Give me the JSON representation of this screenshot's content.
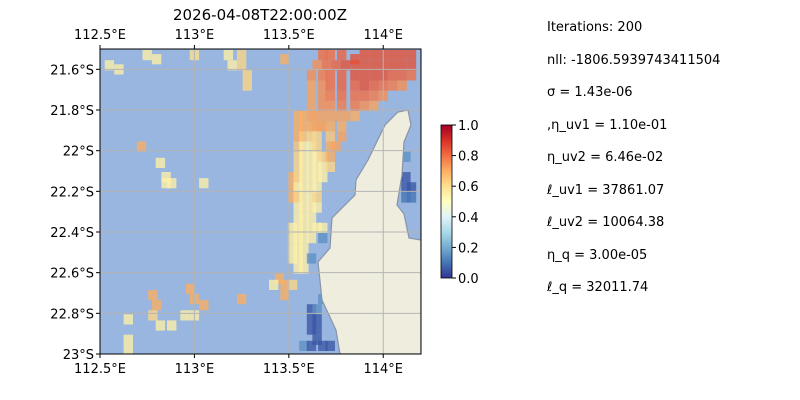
{
  "chart_data": {
    "type": "heatmap",
    "title": "2026-04-08T22:00:00Z",
    "xlim": [
      112.5,
      114.2
    ],
    "ylim": [
      -23.0,
      -21.5
    ],
    "x_ticks": [
      {
        "value": 112.5,
        "label": "112.5°E"
      },
      {
        "value": 113.0,
        "label": "113°E"
      },
      {
        "value": 113.5,
        "label": "113.5°E"
      },
      {
        "value": 114.0,
        "label": "114°E"
      }
    ],
    "y_ticks": [
      {
        "value": -21.6,
        "label": "21.6°S"
      },
      {
        "value": -21.8,
        "label": "21.8°S"
      },
      {
        "value": -22.0,
        "label": "22°S"
      },
      {
        "value": -22.2,
        "label": "22.2°S"
      },
      {
        "value": -22.4,
        "label": "22.4°S"
      },
      {
        "value": -22.6,
        "label": "22.6°S"
      },
      {
        "value": -22.8,
        "label": "22.8°S"
      },
      {
        "value": -23.0,
        "label": "23°S"
      }
    ],
    "grid": true,
    "colormap": "RdYlBu_r",
    "colorbar": {
      "range": [
        0.0,
        1.0
      ],
      "ticks": [
        "0.0",
        "0.2",
        "0.4",
        "0.6",
        "0.8",
        "1.0"
      ]
    },
    "cells": [
      {
        "lon": 112.55,
        "lat": -21.58,
        "v": 0.55
      },
      {
        "lon": 112.6,
        "lat": -21.6,
        "v": 0.55
      },
      {
        "lon": 112.75,
        "lat": -21.53,
        "v": 0.55
      },
      {
        "lon": 112.8,
        "lat": -21.55,
        "v": 0.55
      },
      {
        "lon": 113.0,
        "lat": -21.53,
        "v": 0.6
      },
      {
        "lon": 113.18,
        "lat": -21.53,
        "v": 0.55
      },
      {
        "lon": 113.25,
        "lat": -21.53,
        "v": 0.62
      },
      {
        "lon": 113.25,
        "lat": -21.58,
        "v": 0.62
      },
      {
        "lon": 113.28,
        "lat": -21.63,
        "v": 0.62
      },
      {
        "lon": 113.28,
        "lat": -21.68,
        "v": 0.62
      },
      {
        "lon": 113.2,
        "lat": -21.58,
        "v": 0.55
      },
      {
        "lon": 113.48,
        "lat": -21.55,
        "v": 0.7
      },
      {
        "lon": 112.72,
        "lat": -21.98,
        "v": 0.7
      },
      {
        "lon": 112.82,
        "lat": -22.06,
        "v": 0.55
      },
      {
        "lon": 112.85,
        "lat": -22.13,
        "v": 0.55
      },
      {
        "lon": 112.88,
        "lat": -22.16,
        "v": 0.55
      },
      {
        "lon": 112.85,
        "lat": -22.16,
        "v": 0.55
      },
      {
        "lon": 113.05,
        "lat": -22.16,
        "v": 0.55
      },
      {
        "lon": 112.78,
        "lat": -22.71,
        "v": 0.7
      },
      {
        "lon": 112.8,
        "lat": -22.76,
        "v": 0.7
      },
      {
        "lon": 112.78,
        "lat": -22.81,
        "v": 0.62
      },
      {
        "lon": 112.98,
        "lat": -22.68,
        "v": 0.7
      },
      {
        "lon": 113.0,
        "lat": -22.73,
        "v": 0.7
      },
      {
        "lon": 113.05,
        "lat": -22.76,
        "v": 0.7
      },
      {
        "lon": 113.25,
        "lat": -22.73,
        "v": 0.7
      },
      {
        "lon": 112.95,
        "lat": -22.81,
        "v": 0.55
      },
      {
        "lon": 113.0,
        "lat": -22.81,
        "v": 0.55
      },
      {
        "lon": 112.65,
        "lat": -22.83,
        "v": 0.55
      },
      {
        "lon": 112.65,
        "lat": -22.93,
        "v": 0.55
      },
      {
        "lon": 112.65,
        "lat": -22.98,
        "v": 0.55
      },
      {
        "lon": 112.82,
        "lat": -22.86,
        "v": 0.55
      },
      {
        "lon": 112.88,
        "lat": -22.86,
        "v": 0.55
      },
      {
        "lon": 113.45,
        "lat": -22.63,
        "v": 0.7
      },
      {
        "lon": 113.48,
        "lat": -22.66,
        "v": 0.7
      },
      {
        "lon": 113.48,
        "lat": -22.71,
        "v": 0.7
      },
      {
        "lon": 113.52,
        "lat": -22.66,
        "v": 0.62
      },
      {
        "lon": 113.42,
        "lat": -22.66,
        "v": 0.55
      },
      {
        "lon": 113.55,
        "lat": -21.83,
        "v": 0.7
      },
      {
        "lon": 113.58,
        "lat": -21.83,
        "v": 0.7
      },
      {
        "lon": 113.62,
        "lat": -21.83,
        "v": 0.72
      },
      {
        "lon": 113.65,
        "lat": -21.83,
        "v": 0.72
      },
      {
        "lon": 113.55,
        "lat": -21.88,
        "v": 0.7
      },
      {
        "lon": 113.58,
        "lat": -21.88,
        "v": 0.7
      },
      {
        "lon": 113.62,
        "lat": -21.88,
        "v": 0.7
      },
      {
        "lon": 113.65,
        "lat": -21.88,
        "v": 0.72
      },
      {
        "lon": 113.68,
        "lat": -21.88,
        "v": 0.72
      },
      {
        "lon": 113.72,
        "lat": -21.88,
        "v": 0.7
      },
      {
        "lon": 113.55,
        "lat": -21.93,
        "v": 0.7
      },
      {
        "lon": 113.58,
        "lat": -21.93,
        "v": 0.65
      },
      {
        "lon": 113.62,
        "lat": -21.93,
        "v": 0.62
      },
      {
        "lon": 113.65,
        "lat": -21.93,
        "v": 0.62
      },
      {
        "lon": 113.72,
        "lat": -21.93,
        "v": 0.65
      },
      {
        "lon": 113.78,
        "lat": -21.93,
        "v": 0.72
      },
      {
        "lon": 113.55,
        "lat": -21.98,
        "v": 0.65
      },
      {
        "lon": 113.58,
        "lat": -21.98,
        "v": 0.55
      },
      {
        "lon": 113.62,
        "lat": -21.98,
        "v": 0.55
      },
      {
        "lon": 113.65,
        "lat": -21.98,
        "v": 0.62
      },
      {
        "lon": 113.72,
        "lat": -21.98,
        "v": 0.7
      },
      {
        "lon": 113.75,
        "lat": -21.98,
        "v": 0.72
      },
      {
        "lon": 113.55,
        "lat": -22.03,
        "v": 0.62
      },
      {
        "lon": 113.58,
        "lat": -22.03,
        "v": 0.55
      },
      {
        "lon": 113.62,
        "lat": -22.03,
        "v": 0.55
      },
      {
        "lon": 113.65,
        "lat": -22.03,
        "v": 0.55
      },
      {
        "lon": 113.68,
        "lat": -22.03,
        "v": 0.62
      },
      {
        "lon": 113.72,
        "lat": -22.03,
        "v": 0.7
      },
      {
        "lon": 113.55,
        "lat": -22.08,
        "v": 0.62
      },
      {
        "lon": 113.58,
        "lat": -22.08,
        "v": 0.55
      },
      {
        "lon": 113.62,
        "lat": -22.08,
        "v": 0.55
      },
      {
        "lon": 113.65,
        "lat": -22.08,
        "v": 0.55
      },
      {
        "lon": 113.68,
        "lat": -22.08,
        "v": 0.55
      },
      {
        "lon": 113.72,
        "lat": -22.08,
        "v": 0.62
      },
      {
        "lon": 113.52,
        "lat": -22.13,
        "v": 0.7
      },
      {
        "lon": 113.55,
        "lat": -22.13,
        "v": 0.62
      },
      {
        "lon": 113.58,
        "lat": -22.13,
        "v": 0.55
      },
      {
        "lon": 113.62,
        "lat": -22.13,
        "v": 0.55
      },
      {
        "lon": 113.65,
        "lat": -22.13,
        "v": 0.55
      },
      {
        "lon": 113.68,
        "lat": -22.13,
        "v": 0.55
      },
      {
        "lon": 113.52,
        "lat": -22.18,
        "v": 0.7
      },
      {
        "lon": 113.55,
        "lat": -22.18,
        "v": 0.55
      },
      {
        "lon": 113.58,
        "lat": -22.18,
        "v": 0.55
      },
      {
        "lon": 113.62,
        "lat": -22.18,
        "v": 0.55
      },
      {
        "lon": 113.65,
        "lat": -22.18,
        "v": 0.55
      },
      {
        "lon": 113.52,
        "lat": -22.23,
        "v": 0.7
      },
      {
        "lon": 113.55,
        "lat": -22.23,
        "v": 0.62
      },
      {
        "lon": 113.58,
        "lat": -22.23,
        "v": 0.55
      },
      {
        "lon": 113.62,
        "lat": -22.23,
        "v": 0.55
      },
      {
        "lon": 113.65,
        "lat": -22.23,
        "v": 0.62
      },
      {
        "lon": 113.55,
        "lat": -22.28,
        "v": 0.55
      },
      {
        "lon": 113.58,
        "lat": -22.28,
        "v": 0.55
      },
      {
        "lon": 113.62,
        "lat": -22.28,
        "v": 0.55
      },
      {
        "lon": 113.65,
        "lat": -22.28,
        "v": 0.55
      },
      {
        "lon": 113.55,
        "lat": -22.33,
        "v": 0.55
      },
      {
        "lon": 113.58,
        "lat": -22.33,
        "v": 0.55
      },
      {
        "lon": 113.62,
        "lat": -22.33,
        "v": 0.55
      },
      {
        "lon": 113.52,
        "lat": -22.38,
        "v": 0.55
      },
      {
        "lon": 113.55,
        "lat": -22.38,
        "v": 0.55
      },
      {
        "lon": 113.58,
        "lat": -22.38,
        "v": 0.55
      },
      {
        "lon": 113.62,
        "lat": -22.38,
        "v": 0.55
      },
      {
        "lon": 113.65,
        "lat": -22.38,
        "v": 0.55
      },
      {
        "lon": 113.68,
        "lat": -22.38,
        "v": 0.55
      },
      {
        "lon": 113.52,
        "lat": -22.43,
        "v": 0.55
      },
      {
        "lon": 113.55,
        "lat": -22.43,
        "v": 0.55
      },
      {
        "lon": 113.58,
        "lat": -22.43,
        "v": 0.55
      },
      {
        "lon": 113.62,
        "lat": -22.43,
        "v": 0.55
      },
      {
        "lon": 113.52,
        "lat": -22.48,
        "v": 0.55
      },
      {
        "lon": 113.55,
        "lat": -22.48,
        "v": 0.55
      },
      {
        "lon": 113.58,
        "lat": -22.48,
        "v": 0.55
      },
      {
        "lon": 113.52,
        "lat": -22.53,
        "v": 0.55
      },
      {
        "lon": 113.55,
        "lat": -22.53,
        "v": 0.55
      },
      {
        "lon": 113.58,
        "lat": -22.53,
        "v": 0.55
      },
      {
        "lon": 113.55,
        "lat": -22.58,
        "v": 0.55
      },
      {
        "lon": 113.58,
        "lat": -22.58,
        "v": 0.55
      },
      {
        "lon": 113.62,
        "lat": -22.53,
        "v": 0.15
      },
      {
        "lon": 113.68,
        "lat": -22.43,
        "v": 0.15
      },
      {
        "lon": 113.62,
        "lat": -22.78,
        "v": 0.05
      },
      {
        "lon": 113.65,
        "lat": -22.78,
        "v": 0.15
      },
      {
        "lon": 113.62,
        "lat": -22.83,
        "v": 0.05
      },
      {
        "lon": 113.65,
        "lat": -22.83,
        "v": 0.05
      },
      {
        "lon": 113.62,
        "lat": -22.88,
        "v": 0.05
      },
      {
        "lon": 113.65,
        "lat": -22.88,
        "v": 0.05
      },
      {
        "lon": 113.65,
        "lat": -22.93,
        "v": 0.05
      },
      {
        "lon": 113.58,
        "lat": -22.96,
        "v": 0.15
      },
      {
        "lon": 113.62,
        "lat": -22.96,
        "v": 0.05
      },
      {
        "lon": 113.68,
        "lat": -22.96,
        "v": 0.05
      },
      {
        "lon": 113.72,
        "lat": -22.96,
        "v": 0.05
      },
      {
        "lon": 113.68,
        "lat": -22.73,
        "v": 0.15
      },
      {
        "lon": 114.08,
        "lat": -22.13,
        "v": 0.05
      },
      {
        "lon": 114.12,
        "lat": -22.13,
        "v": 0.05
      },
      {
        "lon": 114.12,
        "lat": -22.18,
        "v": 0.05
      },
      {
        "lon": 114.15,
        "lat": -22.18,
        "v": 0.05
      },
      {
        "lon": 114.12,
        "lat": -22.23,
        "v": 0.1
      },
      {
        "lon": 114.15,
        "lat": -22.23,
        "v": 0.1
      },
      {
        "lon": 114.12,
        "lat": -22.03,
        "v": 0.15
      },
      {
        "lon": 113.85,
        "lat": -21.55,
        "v": 0.85
      },
      {
        "lon": 113.9,
        "lat": -21.53,
        "v": 0.85
      },
      {
        "lon": 113.68,
        "lat": -21.53,
        "v": 0.8
      },
      {
        "lon": 113.72,
        "lat": -21.53,
        "v": 0.8
      },
      {
        "lon": 113.78,
        "lat": -21.53,
        "v": 0.82
      },
      {
        "lon": 113.95,
        "lat": -21.53,
        "v": 0.85
      },
      {
        "lon": 114.0,
        "lat": -21.53,
        "v": 0.85
      },
      {
        "lon": 114.05,
        "lat": -21.53,
        "v": 0.85
      },
      {
        "lon": 114.1,
        "lat": -21.53,
        "v": 0.85
      },
      {
        "lon": 114.15,
        "lat": -21.53,
        "v": 0.85
      },
      {
        "lon": 113.65,
        "lat": -21.58,
        "v": 0.75
      },
      {
        "lon": 113.7,
        "lat": -21.58,
        "v": 0.8
      },
      {
        "lon": 113.75,
        "lat": -21.58,
        "v": 0.82
      },
      {
        "lon": 113.8,
        "lat": -21.58,
        "v": 0.85
      },
      {
        "lon": 113.85,
        "lat": -21.58,
        "v": 0.85
      },
      {
        "lon": 113.9,
        "lat": -21.58,
        "v": 0.85
      },
      {
        "lon": 113.95,
        "lat": -21.58,
        "v": 0.85
      },
      {
        "lon": 114.0,
        "lat": -21.58,
        "v": 0.85
      },
      {
        "lon": 114.05,
        "lat": -21.58,
        "v": 0.85
      },
      {
        "lon": 114.1,
        "lat": -21.58,
        "v": 0.85
      },
      {
        "lon": 114.15,
        "lat": -21.58,
        "v": 0.85
      },
      {
        "lon": 113.62,
        "lat": -21.63,
        "v": 0.75
      },
      {
        "lon": 113.68,
        "lat": -21.63,
        "v": 0.78
      },
      {
        "lon": 113.72,
        "lat": -21.63,
        "v": 0.8
      },
      {
        "lon": 113.78,
        "lat": -21.63,
        "v": 0.82
      },
      {
        "lon": 113.85,
        "lat": -21.63,
        "v": 0.85
      },
      {
        "lon": 113.9,
        "lat": -21.63,
        "v": 0.85
      },
      {
        "lon": 113.95,
        "lat": -21.63,
        "v": 0.85
      },
      {
        "lon": 114.0,
        "lat": -21.63,
        "v": 0.85
      },
      {
        "lon": 114.05,
        "lat": -21.63,
        "v": 0.82
      },
      {
        "lon": 114.1,
        "lat": -21.63,
        "v": 0.82
      },
      {
        "lon": 114.15,
        "lat": -21.63,
        "v": 0.8
      },
      {
        "lon": 113.62,
        "lat": -21.68,
        "v": 0.72
      },
      {
        "lon": 113.68,
        "lat": -21.68,
        "v": 0.75
      },
      {
        "lon": 113.72,
        "lat": -21.68,
        "v": 0.8
      },
      {
        "lon": 113.78,
        "lat": -21.68,
        "v": 0.82
      },
      {
        "lon": 113.85,
        "lat": -21.68,
        "v": 0.82
      },
      {
        "lon": 113.9,
        "lat": -21.68,
        "v": 0.85
      },
      {
        "lon": 113.95,
        "lat": -21.68,
        "v": 0.82
      },
      {
        "lon": 114.0,
        "lat": -21.68,
        "v": 0.8
      },
      {
        "lon": 114.05,
        "lat": -21.68,
        "v": 0.78
      },
      {
        "lon": 114.1,
        "lat": -21.68,
        "v": 0.75
      },
      {
        "lon": 113.62,
        "lat": -21.73,
        "v": 0.72
      },
      {
        "lon": 113.68,
        "lat": -21.73,
        "v": 0.75
      },
      {
        "lon": 113.72,
        "lat": -21.73,
        "v": 0.78
      },
      {
        "lon": 113.78,
        "lat": -21.73,
        "v": 0.8
      },
      {
        "lon": 113.85,
        "lat": -21.73,
        "v": 0.8
      },
      {
        "lon": 113.9,
        "lat": -21.73,
        "v": 0.8
      },
      {
        "lon": 113.95,
        "lat": -21.73,
        "v": 0.78
      },
      {
        "lon": 114.0,
        "lat": -21.73,
        "v": 0.75
      },
      {
        "lon": 113.62,
        "lat": -21.78,
        "v": 0.72
      },
      {
        "lon": 113.68,
        "lat": -21.78,
        "v": 0.75
      },
      {
        "lon": 113.72,
        "lat": -21.78,
        "v": 0.75
      },
      {
        "lon": 113.78,
        "lat": -21.78,
        "v": 0.78
      },
      {
        "lon": 113.85,
        "lat": -21.78,
        "v": 0.78
      },
      {
        "lon": 113.9,
        "lat": -21.78,
        "v": 0.75
      },
      {
        "lon": 113.95,
        "lat": -21.78,
        "v": 0.72
      },
      {
        "lon": 113.7,
        "lat": -21.83,
        "v": 0.72
      },
      {
        "lon": 113.75,
        "lat": -21.83,
        "v": 0.72
      },
      {
        "lon": 113.8,
        "lat": -21.83,
        "v": 0.72
      },
      {
        "lon": 113.85,
        "lat": -21.83,
        "v": 0.7
      },
      {
        "lon": 113.78,
        "lat": -21.88,
        "v": 0.7
      }
    ]
  },
  "stats": [
    "Iterations: 200",
    "nll: -1806.5939743411504",
    "σ = 1.43e-06",
    ",η_uv1 = 1.10e-01",
    "η_uv2 = 6.46e-02",
    "ℓ_uv1 = 37861.07",
    "ℓ_uv2 = 10064.38",
    "η_q = 3.00e-05",
    "ℓ_q = 32011.74"
  ],
  "colors": {
    "ocean": "#98b6e0",
    "land": "#efedde",
    "coast": "#8a93a8",
    "grid": "#b4b4b4"
  }
}
